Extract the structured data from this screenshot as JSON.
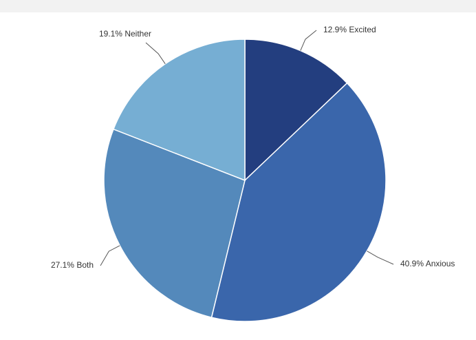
{
  "chart_data": {
    "type": "pie",
    "categories": [
      "Excited",
      "Anxious",
      "Both",
      "Neither"
    ],
    "values": [
      12.9,
      40.9,
      27.1,
      19.1
    ],
    "value_labels": [
      "12.9%",
      "40.9%",
      "27.1%",
      "19.1%"
    ],
    "colors": [
      "#233e7f",
      "#3a66ab",
      "#5489bb",
      "#76aed3"
    ]
  }
}
